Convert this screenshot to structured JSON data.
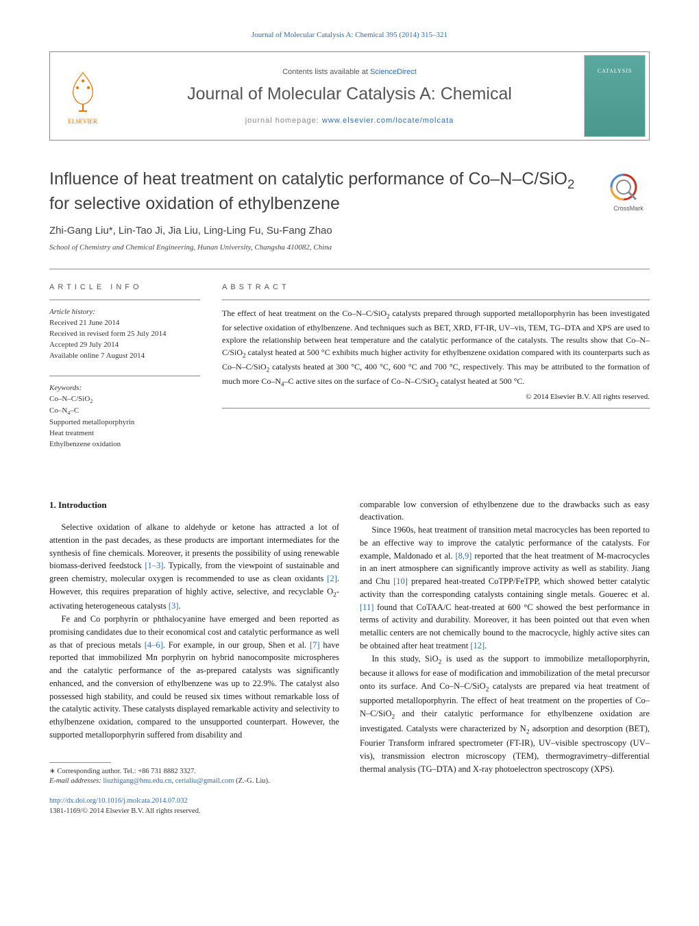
{
  "links": {
    "top_citation_prefix": "Journal of Molecular Catalysis A: Chemical 395 (2014) 315–321",
    "sciencedirect": "ScienceDirect",
    "homepage_label": "journal homepage: ",
    "homepage_url": "www.elsevier.com/locate/molcata",
    "contents_prefix": "Contents lists available at "
  },
  "journal": {
    "name": "Journal of Molecular Catalysis A: Chemical",
    "cover_label": "CATALYSIS",
    "publisher": "ELSEVIER"
  },
  "article": {
    "title_html": "Influence of heat treatment on catalytic performance of Co–N–C/SiO<sub>2</sub> for selective oxidation of ethylbenzene",
    "authors_html": "Zhi-Gang Liu<span class='corr-mark'>*</span>, Lin-Tao Ji, Jia Liu, Ling-Ling Fu, Su-Fang Zhao",
    "affiliation": "School of Chemistry and Chemical Engineering, Hunan University, Changsha 410082, China"
  },
  "article_info": {
    "heading": "article info",
    "history_label": "Article history:",
    "received": "Received 21 June 2014",
    "revised": "Received in revised form 25 July 2014",
    "accepted": "Accepted 29 July 2014",
    "online": "Available online 7 August 2014",
    "keywords_label": "Keywords:",
    "keywords_html": "Co–N–C/SiO<sub>2</sub><br>Co–N<sub>4</sub>–C<br>Supported metalloporphyrin<br>Heat treatment<br>Ethylbenzene oxidation"
  },
  "abstract": {
    "heading": "abstract",
    "text_html": "The effect of heat treatment on the Co–N–C/SiO<sub>2</sub> catalysts prepared through supported metalloporphyrin has been investigated for selective oxidation of ethylbenzene. And techniques such as BET, XRD, FT-IR, UV–vis, TEM, TG–DTA and XPS are used to explore the relationship between heat temperature and the catalytic performance of the catalysts. The results show that Co–N–C/SiO<sub>2</sub> catalyst heated at 500 °C exhibits much higher activity for ethylbenzene oxidation compared with its counterparts such as Co–N–C/SiO<sub>2</sub> catalysts heated at 300 °C, 400 °C, 600 °C and 700 °C, respectively. This may be attributed to the formation of much more Co–N<sub>4</sub>–C active sites on the surface of Co–N–C/SiO<sub>2</sub> catalyst heated at 500 °C.",
    "copyright": "© 2014 Elsevier B.V. All rights reserved."
  },
  "body": {
    "section_heading": "1. Introduction",
    "col1_p1_html": "Selective oxidation of alkane to aldehyde or ketone has attracted a lot of attention in the past decades, as these products are important intermediates for the synthesis of fine chemicals. Moreover, it presents the possibility of using renewable biomass-derived feedstock <a class='ref-link' href='#'>[1–3]</a>. Typically, from the viewpoint of sustainable and green chemistry, molecular oxygen is recommended to use as clean oxidants <a class='ref-link' href='#'>[2]</a>. However, this requires preparation of highly active, selective, and recyclable O<sub>2</sub>-activating heterogeneous catalysts <a class='ref-link' href='#'>[3]</a>.",
    "col1_p2_html": "Fe and Co porphyrin or phthalocyanine have emerged and been reported as promising candidates due to their economical cost and catalytic performance as well as that of precious metals <a class='ref-link' href='#'>[4–6]</a>. For example, in our group, Shen et al. <a class='ref-link' href='#'>[7]</a> have reported that immobilized Mn porphyrin on hybrid nanocomposite microspheres and the catalytic performance of the as-prepared catalysts was significantly enhanced, and the conversion of ethylbenzene was up to 22.9%. The catalyst also possessed high stability, and could be reused six times without remarkable loss of the catalytic activity. These catalysts displayed remarkable activity and selectivity to ethylbenzene oxidation, compared to the unsupported counterpart. However, the supported metalloporphyrin suffered from disability and",
    "col2_p1_html": "comparable low conversion of ethylbenzene due to the drawbacks such as easy deactivation.",
    "col2_p2_html": "Since 1960s, heat treatment of transition metal macrocycles has been reported to be an effective way to improve the catalytic performance of the catalysts. For example, Maldonado et al. <a class='ref-link' href='#'>[8,9]</a> reported that the heat treatment of M-macrocycles in an inert atmosphere can significantly improve activity as well as stability. Jiang and Chu <a class='ref-link' href='#'>[10]</a> prepared heat-treated CoTPP/FeTPP, which showed better catalytic activity than the corresponding catalysts containing single metals. Gouerec et al. <a class='ref-link' href='#'>[11]</a> found that CoTAA/C heat-treated at 600 °C showed the best performance in terms of activity and durability. Moreover, it has been pointed out that even when metallic centers are not chemically bound to the macrocycle, highly active sites can be obtained after heat treatment <a class='ref-link' href='#'>[12]</a>.",
    "col2_p3_html": "In this study, SiO<sub>2</sub> is used as the support to immobilize metalloporphyrin, because it allows for ease of modification and immobilization of the metal precursor onto its surface. And Co–N–C/SiO<sub>2</sub> catalysts are prepared via heat treatment of supported metalloporphyrin. The effect of heat treatment on the properties of Co–N–C/SiO<sub>2</sub> and their catalytic performance for ethylbenzene oxidation are investigated. Catalysts were characterized by N<sub>2</sub> adsorption and desorption (BET), Fourier Transform infrared spectrometer (FT-IR), UV–visible spectroscopy (UV–vis), transmission electron microscopy (TEM), thermogravimetry–differential thermal analysis (TG–DTA) and X-ray photoelectron spectroscopy (XPS)."
  },
  "footer": {
    "corr_line": "∗ Corresponding author. Tel.: +86 731 8882 3327.",
    "email_label": "E-mail addresses: ",
    "email_1": "liuzhigang@hnu.edu.cn",
    "email_2": "cerialiu@gmail.com",
    "email_suffix": " (Z.-G. Liu).",
    "doi_url": "http://dx.doi.org/10.1016/j.molcata.2014.07.032",
    "issn_line": "1381-1169/© 2014 Elsevier B.V. All rights reserved."
  },
  "crossmark": {
    "label": "CrossMark"
  },
  "colors": {
    "link": "#2a6bb8",
    "elsevier_orange": "#e87200",
    "grey_text": "#555555",
    "border": "#888888"
  }
}
